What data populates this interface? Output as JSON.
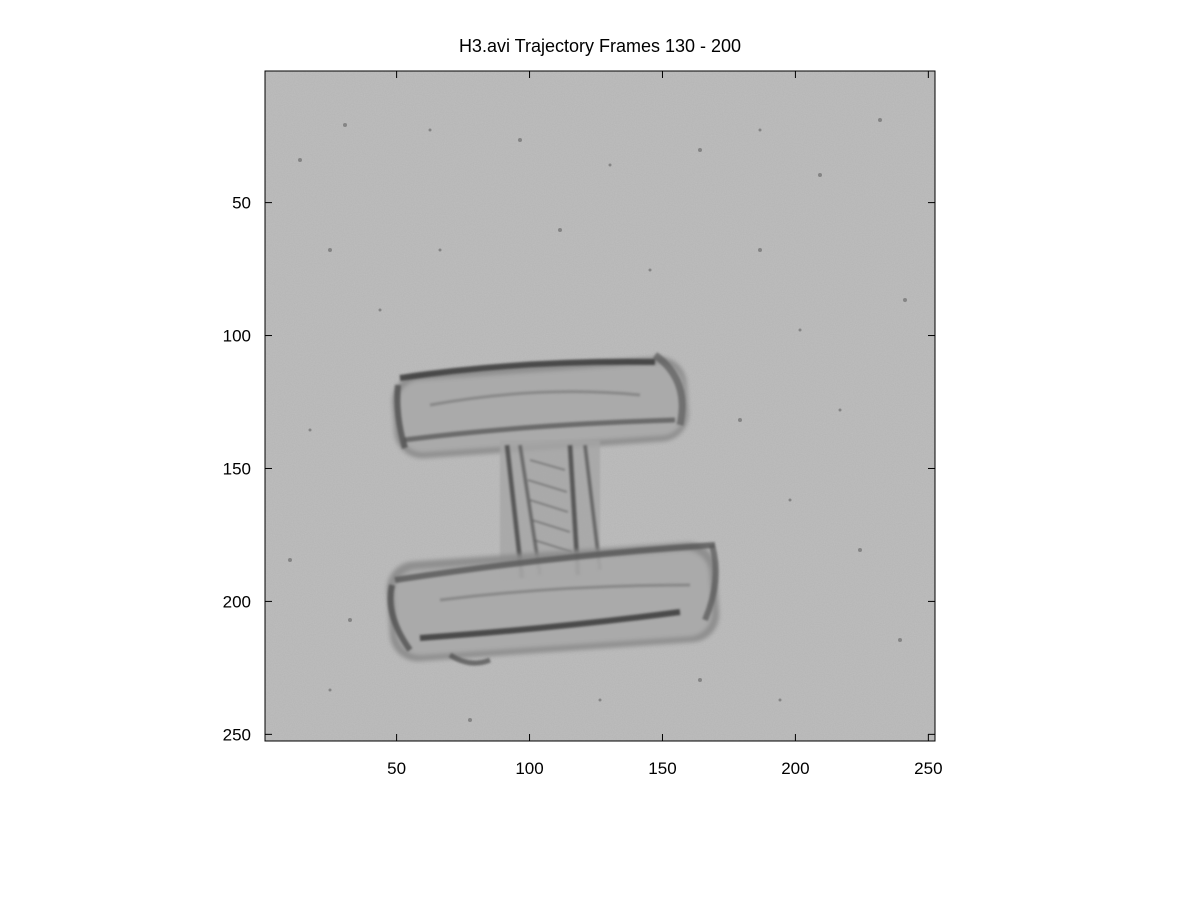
{
  "figure": {
    "title": "H3.avi Trajectory Frames 130 - 200"
  },
  "image": {
    "description_id": "microscopy-frame",
    "background_color": "#bdbdbd",
    "x_range": [
      0.5,
      252.5
    ],
    "y_range": [
      0.5,
      252.5
    ],
    "y_direction": "reversed"
  },
  "axes": {
    "x_ticks": [
      50,
      100,
      150,
      200,
      250
    ],
    "x_tick_labels": [
      "50",
      "100",
      "150",
      "200",
      "250"
    ],
    "y_ticks": [
      50,
      100,
      150,
      200,
      250
    ],
    "y_tick_labels": [
      "50",
      "100",
      "150",
      "200",
      "250"
    ]
  },
  "colors": {
    "frame": "#000000",
    "structure_dark": "#3a3a3a",
    "structure_mid": "#6e6e6e"
  }
}
